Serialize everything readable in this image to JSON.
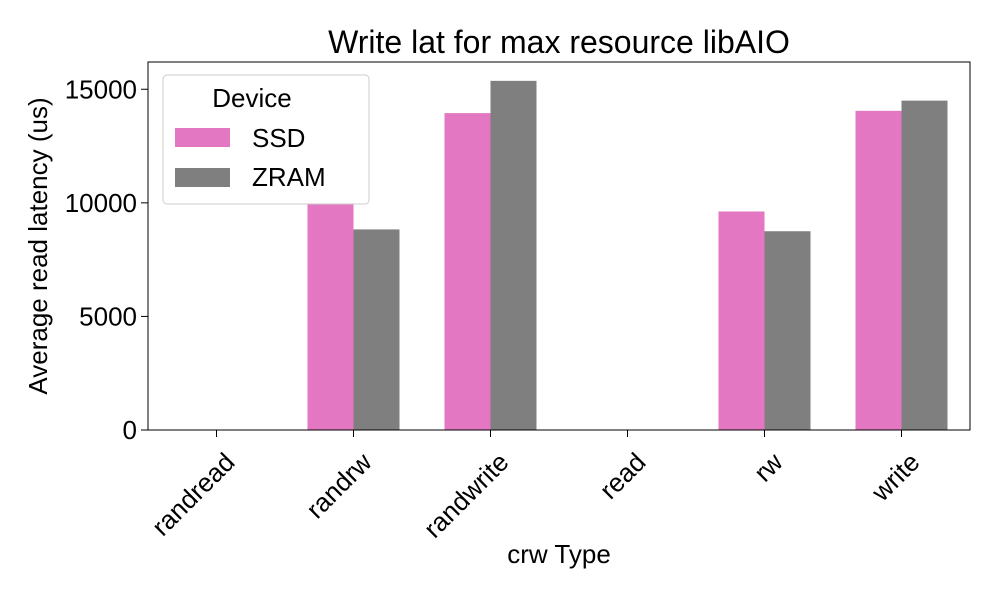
{
  "chart_data": {
    "type": "bar",
    "title": "Write lat for max resource libAIO",
    "xlabel": "crw Type",
    "ylabel": "Average read latency (us)",
    "categories": [
      "randread",
      "randrw",
      "randwrite",
      "read",
      "rw",
      "write"
    ],
    "series": [
      {
        "name": "SSD",
        "color": "#e377c2",
        "values": [
          0,
          9980,
          13950,
          0,
          9620,
          14050
        ]
      },
      {
        "name": "ZRAM",
        "color": "#7f7f7f",
        "values": [
          0,
          8830,
          15370,
          0,
          8750,
          14500
        ]
      }
    ],
    "ylim": [
      0,
      16200
    ],
    "yticks": [
      0,
      5000,
      10000,
      15000
    ],
    "legend": {
      "title": "Device",
      "position": "top-left"
    },
    "grid": false
  }
}
